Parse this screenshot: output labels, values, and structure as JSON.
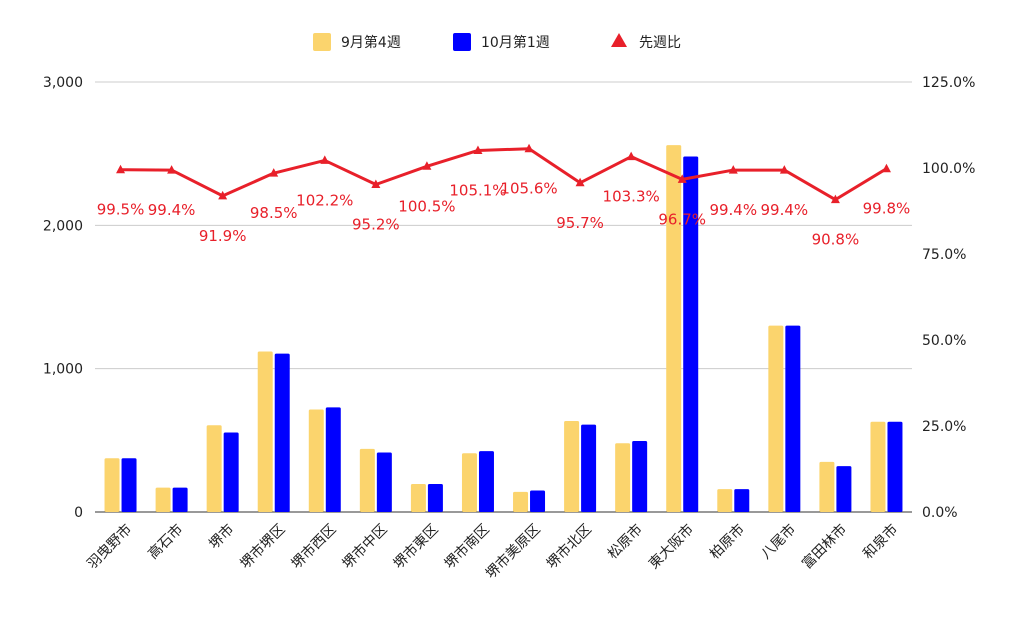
{
  "chart_data": {
    "type": "bar",
    "categories": [
      "羽曳野市",
      "高石市",
      "堺市",
      "堺市堺区",
      "堺市西区",
      "堺市中区",
      "堺市東区",
      "堺市南区",
      "堺市美原区",
      "堺市北区",
      "松原市",
      "東大阪市",
      "柏原市",
      "八尾市",
      "富田林市",
      "和泉市"
    ],
    "series": [
      {
        "name": "9月第4週",
        "type": "bar",
        "color": "#fbd46d",
        "values": [
          375,
          170,
          605,
          1120,
          715,
          440,
          195,
          410,
          140,
          635,
          480,
          2560,
          160,
          1300,
          350,
          630
        ]
      },
      {
        "name": "10月第1週",
        "type": "bar",
        "color": "#0000ff",
        "values": [
          375,
          170,
          555,
          1105,
          730,
          415,
          195,
          425,
          150,
          610,
          495,
          2480,
          160,
          1300,
          320,
          630
        ]
      },
      {
        "name": "先週比",
        "type": "line",
        "axis": "right",
        "color": "#e8202a",
        "values": [
          99.5,
          99.4,
          91.9,
          98.5,
          102.2,
          95.2,
          100.5,
          105.1,
          105.6,
          95.7,
          103.3,
          96.7,
          99.4,
          99.4,
          90.8,
          99.8
        ],
        "labels": [
          "99.5%",
          "99.4%",
          "91.9%",
          "98.5%",
          "102.2%",
          "95.2%",
          "100.5%",
          "105.1%",
          "105.6%",
          "95.7%",
          "103.3%",
          "96.7%",
          "99.4%",
          "99.4%",
          "90.8%",
          "99.8%"
        ]
      }
    ],
    "y_left": {
      "min": 0,
      "max": 3000,
      "ticks": [
        0,
        1000,
        2000,
        3000
      ],
      "tick_labels": [
        "0",
        "1,000",
        "2,000",
        "3,000"
      ]
    },
    "y_right": {
      "min": 0,
      "max": 125,
      "ticks": [
        0,
        25,
        50,
        75,
        100,
        125
      ],
      "tick_labels": [
        "0.0%",
        "25.0%",
        "50.0%",
        "75.0%",
        "100.0%",
        "125.0%"
      ]
    },
    "legend_position": "top-center",
    "grid": true
  },
  "colors": {
    "bar1": "#fbd46d",
    "bar2": "#0000ff",
    "line": "#e8202a",
    "grid": "#cccccc",
    "axis": "#333333"
  }
}
